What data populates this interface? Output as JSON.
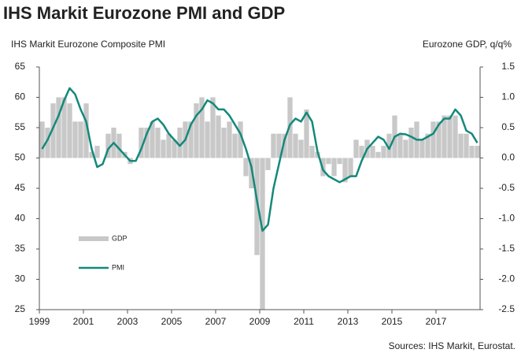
{
  "chart_data": {
    "type": "line-bar",
    "title": "IHS Markit Eurozone PMI and GDP",
    "ylabel": "IHS Markit Eurozone Composite PMI",
    "y2label": "Eurozone GDP, q/q%",
    "source": "Sources: IHS Markit, Eurostat.",
    "x": [
      1999,
      1999.25,
      1999.5,
      1999.75,
      2000,
      2000.25,
      2000.5,
      2000.75,
      2001,
      2001.25,
      2001.5,
      2001.75,
      2002,
      2002.25,
      2002.5,
      2002.75,
      2003,
      2003.25,
      2003.5,
      2003.75,
      2004,
      2004.25,
      2004.5,
      2004.75,
      2005,
      2005.25,
      2005.5,
      2005.75,
      2006,
      2006.25,
      2006.5,
      2006.75,
      2007,
      2007.25,
      2007.5,
      2007.75,
      2008,
      2008.25,
      2008.5,
      2008.75,
      2009,
      2009.25,
      2009.5,
      2009.75,
      2010,
      2010.25,
      2010.5,
      2010.75,
      2011,
      2011.25,
      2011.5,
      2011.75,
      2012,
      2012.25,
      2012.5,
      2012.75,
      2013,
      2013.25,
      2013.5,
      2013.75,
      2014,
      2014.25,
      2014.5,
      2014.75,
      2015,
      2015.25,
      2015.5,
      2015.75,
      2016,
      2016.25,
      2016.5,
      2016.75,
      2017,
      2017.25,
      2017.5,
      2017.75,
      2018,
      2018.25,
      2018.5,
      2018.75
    ],
    "series": [
      {
        "name": "GDP",
        "color": "#c8c8c8",
        "axis": "y2",
        "style": "bar",
        "values": [
          0.6,
          0.5,
          0.9,
          1.0,
          1.0,
          0.9,
          0.6,
          0.6,
          0.9,
          0.1,
          0.2,
          0.0,
          0.4,
          0.5,
          0.4,
          0.1,
          -0.1,
          0.0,
          0.5,
          0.5,
          0.6,
          0.5,
          0.3,
          0.4,
          0.3,
          0.5,
          0.6,
          0.6,
          0.9,
          1.0,
          0.6,
          1.0,
          0.7,
          0.5,
          0.6,
          0.4,
          0.6,
          -0.3,
          -0.5,
          -1.6,
          -2.5,
          -0.2,
          0.4,
          0.4,
          0.4,
          1.0,
          0.4,
          0.3,
          0.8,
          0.2,
          0.1,
          -0.3,
          -0.1,
          -0.3,
          -0.1,
          -0.4,
          -0.3,
          0.3,
          0.2,
          0.3,
          0.2,
          0.1,
          0.2,
          0.4,
          0.7,
          0.4,
          0.3,
          0.5,
          0.6,
          0.3,
          0.4,
          0.6,
          0.6,
          0.7,
          0.7,
          0.7,
          0.4,
          0.4,
          0.2,
          0.2
        ]
      },
      {
        "name": "PMI",
        "color": "#13897a",
        "axis": "y",
        "style": "line",
        "values": [
          51.5,
          53,
          55,
          57,
          59.5,
          61.5,
          60.5,
          58,
          56,
          51.5,
          48.5,
          49,
          51.5,
          52.5,
          51.5,
          50.5,
          49.5,
          49.5,
          51.5,
          54,
          56,
          56.5,
          55.5,
          54,
          53,
          52,
          53,
          55.5,
          57,
          58,
          59.5,
          59,
          58,
          58,
          57,
          55.5,
          54,
          51.5,
          48.5,
          43,
          38,
          39,
          45,
          49,
          53,
          55.5,
          56.5,
          56,
          57.5,
          56,
          51,
          48,
          47,
          46.5,
          46,
          46.5,
          47,
          47,
          49.5,
          51.5,
          52.5,
          53.5,
          53,
          51.5,
          53.5,
          54,
          53.9,
          53.5,
          53,
          53,
          53.5,
          54,
          55.5,
          56.5,
          56.5,
          58,
          57,
          54.5,
          54,
          52.5
        ]
      }
    ],
    "xlim": [
      1999,
      2019
    ],
    "xticks": [
      1999,
      2001,
      2003,
      2005,
      2007,
      2009,
      2011,
      2013,
      2015,
      2017
    ],
    "ylim": [
      25,
      65
    ],
    "yticks": [
      25,
      30,
      35,
      40,
      45,
      50,
      55,
      60,
      65
    ],
    "y2lim": [
      -2.5,
      1.5
    ],
    "y2ticks": [
      -2.5,
      {
        "value": -2,
        "label": "-2.0"
      },
      -1.5,
      {
        "value": -1,
        "label": "-1.0"
      },
      -0.5,
      {
        "value": 0,
        "label": "0.0"
      },
      0.5,
      {
        "value": 1,
        "label": "1.0"
      },
      1.5
    ],
    "grid": false
  }
}
